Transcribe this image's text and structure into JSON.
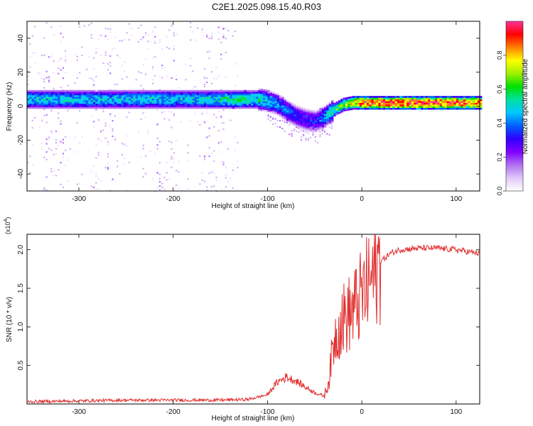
{
  "page_title": "C2E1.2025.098.15.40.R03",
  "chart_data": [
    {
      "type": "heatmap",
      "xlabel": "Height of straight line (km)",
      "ylabel": "Frequency (Hz)",
      "xlim": [
        -355,
        125
      ],
      "ylim": [
        -50,
        50
      ],
      "xticks": [
        -300,
        -200,
        -100,
        0,
        100
      ],
      "yticks": [
        -40,
        -20,
        0,
        20,
        40
      ],
      "colorbar": {
        "label": "Normalized spectral amplitude",
        "range": [
          0,
          1
        ],
        "ticks": [
          0.0,
          0.2,
          0.4,
          0.6,
          0.8
        ],
        "colors": [
          "#ffffff",
          "#e0c8f8",
          "#b070f0",
          "#8000ff",
          "#3000ff",
          "#0060ff",
          "#00c8ff",
          "#00e0a0",
          "#00e000",
          "#a0f000",
          "#ffff00",
          "#ff8000",
          "#ff0000",
          "#ff3399"
        ]
      },
      "ridge": {
        "x": [
          -355,
          -300,
          -250,
          -200,
          -150,
          -130,
          -110,
          -100,
          -90,
          -80,
          -70,
          -60,
          -50,
          -40,
          -30,
          -20,
          -10,
          0,
          20,
          50,
          80,
          100,
          125
        ],
        "center_hz": [
          4,
          4,
          4,
          4,
          4,
          4,
          4,
          3,
          1,
          -3,
          -6,
          -8,
          -9,
          -6,
          -2,
          1,
          2,
          2,
          2,
          2,
          2,
          2,
          2
        ],
        "amplitude": [
          0.5,
          0.5,
          0.5,
          0.5,
          0.55,
          0.6,
          0.55,
          0.5,
          0.45,
          0.4,
          0.35,
          0.35,
          0.35,
          0.45,
          0.6,
          0.7,
          0.85,
          0.95,
          0.98,
          1.0,
          0.98,
          0.95,
          0.95
        ]
      },
      "noise_region_x": [
        -355,
        -130
      ]
    },
    {
      "type": "line",
      "xlabel": "Height of straight line (km)",
      "ylabel": "SNR (10 * v/v)",
      "y_multiplier": "(x10",
      "y_multiplier_exp": "4",
      "y_multiplier_close": ")",
      "xlim": [
        -355,
        125
      ],
      "ylim": [
        0,
        2.2
      ],
      "xticks": [
        -300,
        -200,
        -100,
        0,
        100
      ],
      "yticks": [
        0.5,
        1.0,
        1.5,
        2.0
      ],
      "series": [
        {
          "color": "#e03030",
          "x": [
            -355,
            -300,
            -250,
            -200,
            -150,
            -120,
            -100,
            -90,
            -80,
            -70,
            -60,
            -50,
            -40,
            -35,
            -30,
            -25,
            -20,
            -15,
            -10,
            -5,
            0,
            5,
            10,
            15,
            20,
            30,
            40,
            60,
            80,
            100,
            125
          ],
          "y": [
            0.03,
            0.04,
            0.05,
            0.05,
            0.05,
            0.06,
            0.12,
            0.28,
            0.35,
            0.3,
            0.22,
            0.15,
            0.1,
            0.3,
            0.8,
            1.0,
            1.1,
            1.15,
            1.2,
            1.3,
            1.4,
            1.5,
            1.6,
            1.75,
            1.85,
            1.95,
            2.0,
            2.02,
            2.02,
            2.0,
            1.95
          ]
        }
      ]
    }
  ]
}
